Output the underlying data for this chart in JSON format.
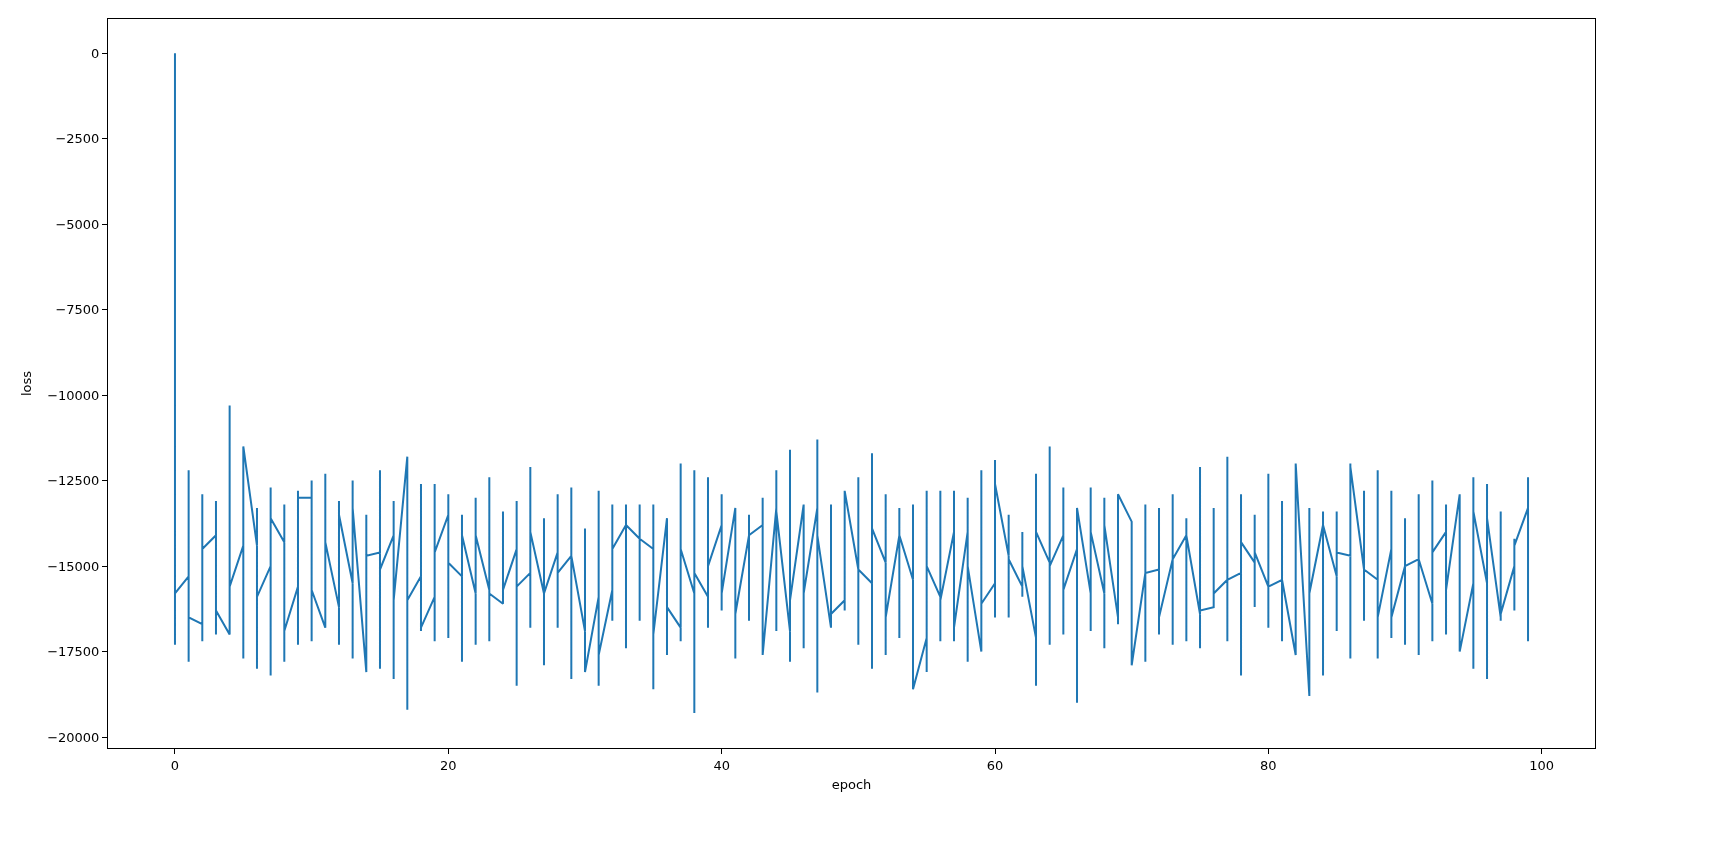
{
  "chart_data": {
    "type": "line",
    "xlabel": "epoch",
    "ylabel": "loss",
    "color": "#1f77b4",
    "line_style": "solid",
    "xlim": [
      -4.9,
      103.9
    ],
    "ylim": [
      -20320,
      1000
    ],
    "xticks": [
      0,
      20,
      40,
      60,
      80,
      100
    ],
    "yticks": [
      0,
      {
        "value": -2500,
        "label": "−2500"
      },
      {
        "value": -5000,
        "label": "−5000"
      },
      {
        "value": -7500,
        "label": "−7500"
      },
      {
        "value": -10000,
        "label": "−10000"
      },
      {
        "value": -12500,
        "label": "−12500"
      },
      {
        "value": -15000,
        "label": "−15000"
      },
      {
        "value": -17500,
        "label": "−17500"
      },
      {
        "value": -20000,
        "label": "−20000"
      }
    ],
    "x": [
      0,
      0,
      0,
      1,
      1,
      1,
      1,
      2,
      2,
      2,
      2,
      3,
      3,
      3,
      3,
      4,
      4,
      4,
      4,
      5,
      5,
      5,
      5,
      6,
      6,
      6,
      6,
      7,
      7,
      7,
      7,
      8,
      8,
      8,
      8,
      9,
      9,
      9,
      9,
      10,
      10,
      10,
      10,
      11,
      11,
      11,
      11,
      12,
      12,
      12,
      12,
      13,
      13,
      13,
      13,
      14,
      14,
      14,
      14,
      15,
      15,
      15,
      15,
      16,
      16,
      16,
      16,
      17,
      17,
      17,
      17,
      18,
      18,
      18,
      18,
      19,
      19,
      19,
      19,
      20,
      20,
      20,
      20,
      21,
      21,
      21,
      21,
      22,
      22,
      22,
      22,
      23,
      23,
      23,
      23,
      24,
      24,
      24,
      24,
      25,
      25,
      25,
      25,
      26,
      26,
      26,
      26,
      27,
      27,
      27,
      27,
      28,
      28,
      28,
      28,
      29,
      29,
      29,
      29,
      30,
      30,
      30,
      30,
      31,
      31,
      31,
      31,
      32,
      32,
      32,
      32,
      33,
      33,
      33,
      33,
      34,
      34,
      34,
      34,
      35,
      35,
      35,
      35,
      36,
      36,
      36,
      36,
      37,
      37,
      37,
      37,
      38,
      38,
      38,
      38,
      39,
      39,
      39,
      39,
      40,
      40,
      40,
      40,
      41,
      41,
      41,
      41,
      42,
      42,
      42,
      42,
      43,
      43,
      43,
      43,
      44,
      44,
      44,
      44,
      45,
      45,
      45,
      45,
      46,
      46,
      46,
      46,
      47,
      47,
      47,
      47,
      48,
      48,
      48,
      48,
      49,
      49,
      49,
      49,
      50,
      50,
      50,
      50,
      51,
      51,
      51,
      51,
      52,
      52,
      52,
      52,
      53,
      53,
      53,
      53,
      54,
      54,
      54,
      54,
      55,
      55,
      55,
      55,
      56,
      56,
      56,
      56,
      57,
      57,
      57,
      57,
      58,
      58,
      58,
      58,
      59,
      59,
      59,
      59,
      60,
      60,
      60,
      60,
      61,
      61,
      61,
      61,
      62,
      62,
      62,
      62,
      63,
      63,
      63,
      63,
      64,
      64,
      64,
      64,
      65,
      65,
      65,
      65,
      66,
      66,
      66,
      66,
      67,
      67,
      67,
      67,
      68,
      68,
      68,
      68,
      69,
      69,
      69,
      69,
      70,
      70,
      70,
      70,
      71,
      71,
      71,
      71,
      72,
      72,
      72,
      72,
      73,
      73,
      73,
      73,
      74,
      74,
      74,
      74,
      75,
      75,
      75,
      75,
      76,
      76,
      76,
      76,
      77,
      77,
      77,
      77,
      78,
      78,
      78,
      78,
      79,
      79,
      79,
      79,
      80,
      80,
      80,
      80,
      81,
      81,
      81,
      81,
      82,
      82,
      82,
      82,
      83,
      83,
      83,
      83,
      84,
      84,
      84,
      84,
      85,
      85,
      85,
      85,
      86,
      86,
      86,
      86,
      87,
      87,
      87,
      87,
      88,
      88,
      88,
      88,
      89,
      89,
      89,
      89,
      90,
      90,
      90,
      90,
      91,
      91,
      91,
      91,
      92,
      92,
      92,
      92,
      93,
      93,
      93,
      93,
      94,
      94,
      94,
      94,
      95,
      95,
      95,
      95,
      96,
      96,
      96,
      96,
      97,
      97,
      97,
      97,
      98,
      98,
      98,
      98,
      99,
      99,
      99
    ],
    "values": [
      0,
      -17300,
      -15800,
      -15300,
      -12200,
      -17800,
      -16500,
      -16700,
      -12900,
      -17200,
      -14500,
      -14100,
      -13100,
      -17000,
      -16300,
      -17000,
      -10300,
      -17000,
      -15600,
      -14400,
      -11500,
      -17700,
      -11500,
      -14400,
      -13300,
      -18000,
      -15900,
      -15000,
      -12700,
      -18200,
      -13600,
      -14300,
      -13200,
      -17800,
      -16900,
      -15600,
      -12800,
      -17300,
      -13000,
      -13000,
      -12500,
      -17200,
      -15700,
      -16800,
      -12300,
      -16800,
      -14300,
      -16200,
      -13100,
      -17300,
      -13500,
      -15500,
      -12500,
      -17700,
      -13300,
      -18100,
      -13500,
      -18100,
      -14700,
      -14600,
      -12200,
      -18000,
      -15100,
      -14100,
      -13100,
      -18300,
      -16000,
      -11800,
      -11800,
      -19200,
      -16000,
      -15300,
      -12600,
      -16900,
      -16800,
      -15900,
      -12600,
      -17200,
      -14600,
      -13500,
      -12900,
      -17100,
      -14900,
      -15300,
      -13500,
      -17800,
      -14100,
      -15800,
      -13000,
      -17300,
      -14100,
      -15700,
      -12400,
      -17200,
      -15800,
      -16100,
      -13400,
      -16100,
      -15700,
      -14500,
      -13100,
      -18500,
      -15600,
      -15200,
      -12100,
      -16800,
      -14000,
      -15800,
      -13600,
      -17900,
      -15800,
      -14600,
      -12900,
      -16800,
      -15200,
      -14700,
      -12700,
      -18300,
      -14700,
      -16900,
      -13900,
      -18100,
      -18100,
      -15900,
      -12800,
      -18500,
      -17600,
      -15700,
      -13200,
      -16600,
      -14500,
      -13800,
      -13200,
      -17400,
      -13800,
      -14200,
      -13200,
      -16600,
      -14200,
      -14500,
      -13200,
      -18600,
      -17000,
      -13600,
      -13600,
      -17600,
      -16200,
      -16800,
      -12000,
      -17200,
      -14500,
      -15800,
      -12200,
      -19300,
      -15200,
      -15900,
      -12400,
      -16800,
      -15000,
      -13800,
      -12900,
      -16300,
      -15800,
      -13300,
      -13300,
      -17700,
      -16400,
      -14100,
      -13500,
      -16600,
      -14100,
      -13800,
      -13000,
      -17600,
      -17600,
      -13300,
      -12200,
      -16900,
      -13400,
      -16900,
      -11600,
      -17800,
      -16000,
      -13200,
      -13200,
      -17400,
      -15800,
      -13300,
      -11300,
      -18700,
      -14100,
      -16800,
      -13200,
      -16800,
      -16400,
      -16000,
      -12800,
      -16300,
      -12800,
      -15100,
      -12400,
      -17300,
      -15100,
      -15500,
      -11700,
      -18000,
      -13900,
      -14900,
      -12900,
      -17600,
      -16500,
      -14100,
      -13300,
      -17100,
      -14100,
      -15400,
      -13200,
      -18600,
      -18600,
      -17100,
      -12800,
      -18100,
      -15000,
      -15900,
      -12800,
      -17200,
      -16000,
      -14000,
      -12800,
      -17200,
      -16800,
      -14000,
      -13000,
      -17800,
      -15000,
      -17500,
      -12200,
      -17500,
      -16100,
      -15500,
      -11900,
      -16500,
      -12600,
      -14700,
      -13500,
      -16500,
      -14800,
      -15600,
      -14000,
      -15900,
      -15000,
      -17100,
      -12300,
      -18500,
      -14000,
      -14900,
      -11500,
      -17300,
      -15000,
      -14100,
      -12700,
      -17000,
      -15700,
      -14500,
      -13300,
      -19000,
      -13300,
      -15800,
      -12700,
      -16900,
      -14000,
      -15800,
      -13000,
      -17400,
      -13800,
      -16500,
      -12900,
      -16700,
      -12900,
      -13700,
      -13700,
      -17900,
      -17900,
      -15200,
      -13200,
      -17800,
      -15200,
      -15100,
      -13300,
      -17000,
      -16500,
      -14800,
      -12900,
      -17300,
      -14800,
      -14100,
      -13600,
      -17200,
      -14100,
      -16400,
      -12100,
      -17400,
      -16300,
      -16200,
      -13300,
      -16200,
      -15800,
      -15400,
      -11800,
      -17200,
      -15400,
      -15200,
      -12900,
      -18200,
      -14300,
      -14900,
      -13500,
      -16200,
      -14600,
      -15600,
      -12300,
      -16800,
      -15600,
      -15400,
      -13100,
      -17200,
      -15400,
      -17600,
      -12000,
      -17600,
      -12000,
      -18800,
      -13300,
      -18800,
      -15800,
      -13800,
      -13400,
      -18200,
      -13800,
      -15300,
      -13400,
      -16900,
      -14600,
      -14700,
      -12000,
      -17700,
      -12100,
      -15100,
      -12800,
      -16600,
      -15100,
      -15400,
      -12200,
      -17700,
      -16500,
      -14500,
      -12800,
      -17100,
      -16500,
      -15000,
      -13600,
      -17300,
      -15000,
      -14800,
      -12900,
      -17600,
      -14800,
      -16100,
      -12500,
      -17200,
      -14600,
      -14000,
      -13200,
      -17000,
      -15700,
      -12900,
      -12900,
      -17500,
      -17500,
      -15500,
      -12400,
      -18000,
      -13400,
      -15500,
      -12600,
      -18300,
      -13600,
      -16500,
      -13400,
      -16600,
      -16400,
      -15000,
      -14200,
      -16300,
      -14400,
      -13300,
      -12400,
      -17200
    ]
  }
}
